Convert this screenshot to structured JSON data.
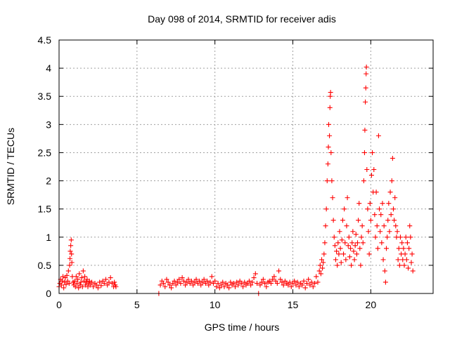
{
  "chart_data": {
    "type": "scatter",
    "title": "Day 098 of 2014, SRMTID for receiver adis",
    "xlabel": "GPS time / hours",
    "ylabel": "SRMTID / TECUs",
    "xlim": [
      0,
      24
    ],
    "ylim": [
      0,
      4.5
    ],
    "xticks": [
      "0",
      "5",
      "10",
      "15",
      "20"
    ],
    "yticks": [
      "0",
      "0.5",
      "1",
      "1.5",
      "2",
      "2.5",
      "3",
      "3.5",
      "4",
      "4.5"
    ],
    "marker": "+",
    "color": "#ff0000",
    "grid": true,
    "series": [
      {
        "name": "SRMTID",
        "points": [
          [
            0.0,
            0.12
          ],
          [
            0.05,
            0.18
          ],
          [
            0.1,
            0.25
          ],
          [
            0.15,
            0.15
          ],
          [
            0.2,
            0.22
          ],
          [
            0.25,
            0.3
          ],
          [
            0.3,
            0.1
          ],
          [
            0.35,
            0.2
          ],
          [
            0.4,
            0.28
          ],
          [
            0.45,
            0.16
          ],
          [
            0.5,
            0.32
          ],
          [
            0.55,
            0.22
          ],
          [
            0.6,
            0.4
          ],
          [
            0.65,
            0.18
          ],
          [
            0.68,
            0.5
          ],
          [
            0.7,
            0.62
          ],
          [
            0.72,
            0.75
          ],
          [
            0.75,
            0.85
          ],
          [
            0.78,
            0.95
          ],
          [
            0.8,
            0.7
          ],
          [
            0.82,
            0.55
          ],
          [
            0.85,
            0.3
          ],
          [
            0.9,
            0.2
          ],
          [
            0.95,
            0.15
          ],
          [
            1.0,
            0.22
          ],
          [
            1.05,
            0.12
          ],
          [
            1.1,
            0.3
          ],
          [
            1.15,
            0.18
          ],
          [
            1.2,
            0.25
          ],
          [
            1.25,
            0.1
          ],
          [
            1.3,
            0.35
          ],
          [
            1.35,
            0.15
          ],
          [
            1.4,
            0.2
          ],
          [
            1.45,
            0.28
          ],
          [
            1.5,
            0.12
          ],
          [
            1.55,
            0.4
          ],
          [
            1.6,
            0.22
          ],
          [
            1.65,
            0.3
          ],
          [
            1.7,
            0.15
          ],
          [
            1.75,
            0.2
          ],
          [
            1.8,
            0.25
          ],
          [
            1.85,
            0.12
          ],
          [
            1.9,
            0.18
          ],
          [
            1.95,
            0.22
          ],
          [
            2.0,
            0.15
          ],
          [
            2.1,
            0.2
          ],
          [
            2.2,
            0.12
          ],
          [
            2.3,
            0.18
          ],
          [
            2.4,
            0.15
          ],
          [
            2.5,
            0.1
          ],
          [
            2.6,
            0.2
          ],
          [
            2.7,
            0.14
          ],
          [
            2.8,
            0.22
          ],
          [
            2.9,
            0.18
          ],
          [
            3.0,
            0.25
          ],
          [
            3.1,
            0.15
          ],
          [
            3.2,
            0.2
          ],
          [
            3.3,
            0.28
          ],
          [
            3.4,
            0.18
          ],
          [
            3.5,
            0.12
          ],
          [
            3.55,
            0.2
          ],
          [
            3.6,
            0.15
          ],
          [
            3.65,
            0.12
          ],
          [
            6.4,
            0.0
          ],
          [
            6.5,
            0.15
          ],
          [
            6.6,
            0.22
          ],
          [
            6.7,
            0.18
          ],
          [
            6.8,
            0.12
          ],
          [
            6.9,
            0.25
          ],
          [
            7.0,
            0.2
          ],
          [
            7.1,
            0.15
          ],
          [
            7.2,
            0.1
          ],
          [
            7.3,
            0.18
          ],
          [
            7.4,
            0.22
          ],
          [
            7.5,
            0.15
          ],
          [
            7.6,
            0.2
          ],
          [
            7.7,
            0.25
          ],
          [
            7.8,
            0.18
          ],
          [
            7.9,
            0.28
          ],
          [
            8.0,
            0.22
          ],
          [
            8.1,
            0.15
          ],
          [
            8.2,
            0.2
          ],
          [
            8.3,
            0.25
          ],
          [
            8.4,
            0.18
          ],
          [
            8.5,
            0.22
          ],
          [
            8.6,
            0.15
          ],
          [
            8.7,
            0.2
          ],
          [
            8.8,
            0.25
          ],
          [
            8.9,
            0.18
          ],
          [
            9.0,
            0.22
          ],
          [
            9.1,
            0.15
          ],
          [
            9.2,
            0.2
          ],
          [
            9.3,
            0.25
          ],
          [
            9.4,
            0.18
          ],
          [
            9.5,
            0.22
          ],
          [
            9.6,
            0.15
          ],
          [
            9.7,
            0.2
          ],
          [
            9.8,
            0.3
          ],
          [
            9.9,
            0.18
          ],
          [
            10.0,
            0.22
          ],
          [
            10.1,
            0.12
          ],
          [
            10.2,
            0.18
          ],
          [
            10.3,
            0.1
          ],
          [
            10.4,
            0.15
          ],
          [
            10.5,
            0.2
          ],
          [
            10.6,
            0.12
          ],
          [
            10.7,
            0.18
          ],
          [
            10.8,
            0.15
          ],
          [
            10.9,
            0.1
          ],
          [
            11.0,
            0.2
          ],
          [
            11.1,
            0.15
          ],
          [
            11.2,
            0.18
          ],
          [
            11.3,
            0.12
          ],
          [
            11.4,
            0.2
          ],
          [
            11.5,
            0.15
          ],
          [
            11.6,
            0.22
          ],
          [
            11.7,
            0.18
          ],
          [
            11.8,
            0.12
          ],
          [
            11.9,
            0.2
          ],
          [
            12.0,
            0.15
          ],
          [
            12.1,
            0.18
          ],
          [
            12.2,
            0.22
          ],
          [
            12.3,
            0.15
          ],
          [
            12.4,
            0.2
          ],
          [
            12.5,
            0.28
          ],
          [
            12.6,
            0.35
          ],
          [
            12.7,
            0.18
          ],
          [
            12.8,
            0.0
          ],
          [
            12.9,
            0.15
          ],
          [
            13.0,
            0.2
          ],
          [
            13.1,
            0.25
          ],
          [
            13.2,
            0.18
          ],
          [
            13.3,
            0.12
          ],
          [
            13.4,
            0.2
          ],
          [
            13.5,
            0.22
          ],
          [
            13.6,
            0.18
          ],
          [
            13.7,
            0.25
          ],
          [
            13.8,
            0.3
          ],
          [
            13.9,
            0.22
          ],
          [
            14.0,
            0.18
          ],
          [
            14.1,
            0.4
          ],
          [
            14.2,
            0.25
          ],
          [
            14.3,
            0.2
          ],
          [
            14.4,
            0.15
          ],
          [
            14.5,
            0.22
          ],
          [
            14.6,
            0.18
          ],
          [
            14.7,
            0.15
          ],
          [
            14.8,
            0.2
          ],
          [
            14.9,
            0.12
          ],
          [
            15.0,
            0.18
          ],
          [
            15.1,
            0.22
          ],
          [
            15.2,
            0.15
          ],
          [
            15.3,
            0.2
          ],
          [
            15.4,
            0.12
          ],
          [
            15.5,
            0.18
          ],
          [
            15.6,
            0.15
          ],
          [
            15.7,
            0.22
          ],
          [
            15.8,
            0.1
          ],
          [
            15.9,
            0.18
          ],
          [
            16.0,
            0.25
          ],
          [
            16.1,
            0.15
          ],
          [
            16.2,
            0.2
          ],
          [
            16.3,
            0.12
          ],
          [
            16.4,
            0.18
          ],
          [
            16.5,
            0.3
          ],
          [
            16.6,
            0.2
          ],
          [
            16.7,
            0.4
          ],
          [
            16.75,
            0.5
          ],
          [
            16.8,
            0.35
          ],
          [
            16.85,
            0.6
          ],
          [
            16.9,
            0.45
          ],
          [
            16.95,
            0.55
          ],
          [
            17.0,
            0.7
          ],
          [
            17.05,
            0.9
          ],
          [
            17.1,
            1.2
          ],
          [
            17.15,
            1.5
          ],
          [
            17.2,
            2.0
          ],
          [
            17.25,
            2.3
          ],
          [
            17.28,
            2.6
          ],
          [
            17.3,
            3.0
          ],
          [
            17.35,
            2.8
          ],
          [
            17.38,
            3.3
          ],
          [
            17.4,
            3.5
          ],
          [
            17.42,
            3.57
          ],
          [
            17.45,
            2.5
          ],
          [
            17.5,
            2.0
          ],
          [
            17.55,
            1.7
          ],
          [
            17.6,
            1.3
          ],
          [
            17.65,
            1.0
          ],
          [
            17.7,
            0.85
          ],
          [
            17.75,
            0.6
          ],
          [
            17.8,
            0.75
          ],
          [
            17.85,
            0.5
          ],
          [
            17.9,
            0.9
          ],
          [
            17.95,
            0.7
          ],
          [
            18.0,
            1.1
          ],
          [
            18.05,
            0.8
          ],
          [
            18.1,
            0.55
          ],
          [
            18.15,
            0.95
          ],
          [
            18.2,
            1.3
          ],
          [
            18.25,
            0.7
          ],
          [
            18.3,
            1.5
          ],
          [
            18.35,
            0.9
          ],
          [
            18.4,
            0.6
          ],
          [
            18.45,
            1.2
          ],
          [
            18.5,
            1.7
          ],
          [
            18.55,
            0.85
          ],
          [
            18.6,
            1.0
          ],
          [
            18.65,
            0.65
          ],
          [
            18.7,
            0.8
          ],
          [
            18.75,
            0.5
          ],
          [
            18.8,
            0.9
          ],
          [
            18.85,
            1.1
          ],
          [
            18.9,
            0.75
          ],
          [
            18.95,
            0.6
          ],
          [
            19.0,
            0.85
          ],
          [
            19.05,
            1.05
          ],
          [
            19.1,
            0.7
          ],
          [
            19.15,
            0.9
          ],
          [
            19.2,
            1.3
          ],
          [
            19.25,
            1.6
          ],
          [
            19.3,
            0.8
          ],
          [
            19.35,
            0.5
          ],
          [
            19.4,
            1.0
          ],
          [
            19.45,
            1.2
          ],
          [
            19.5,
            0.9
          ],
          [
            19.55,
            2.0
          ],
          [
            19.6,
            2.5
          ],
          [
            19.62,
            2.9
          ],
          [
            19.65,
            3.4
          ],
          [
            19.68,
            3.65
          ],
          [
            19.7,
            3.9
          ],
          [
            19.72,
            4.02
          ],
          [
            19.75,
            2.2
          ],
          [
            19.8,
            1.5
          ],
          [
            19.85,
            1.1
          ],
          [
            19.9,
            0.7
          ],
          [
            19.95,
            1.6
          ],
          [
            20.0,
            1.3
          ],
          [
            20.05,
            2.1
          ],
          [
            20.1,
            2.5
          ],
          [
            20.15,
            1.8
          ],
          [
            20.2,
            2.2
          ],
          [
            20.25,
            1.4
          ],
          [
            20.3,
            1.0
          ],
          [
            20.35,
            1.8
          ],
          [
            20.4,
            1.2
          ],
          [
            20.45,
            0.8
          ],
          [
            20.5,
            2.8
          ],
          [
            20.55,
            1.5
          ],
          [
            20.6,
            1.1
          ],
          [
            20.65,
            1.4
          ],
          [
            20.7,
            0.9
          ],
          [
            20.75,
            1.6
          ],
          [
            20.8,
            0.6
          ],
          [
            20.85,
            1.2
          ],
          [
            20.9,
            0.4
          ],
          [
            20.95,
            0.2
          ],
          [
            21.0,
            0.8
          ],
          [
            21.05,
            1.0
          ],
          [
            21.1,
            1.3
          ],
          [
            21.15,
            1.6
          ],
          [
            21.2,
            1.1
          ],
          [
            21.25,
            1.8
          ],
          [
            21.3,
            1.4
          ],
          [
            21.35,
            2.0
          ],
          [
            21.4,
            2.4
          ],
          [
            21.45,
            1.5
          ],
          [
            21.5,
            1.3
          ],
          [
            21.55,
            1.7
          ],
          [
            21.6,
            1.2
          ],
          [
            21.65,
            1.0
          ],
          [
            21.7,
            1.1
          ],
          [
            21.75,
            0.6
          ],
          [
            21.8,
            0.8
          ],
          [
            21.85,
            0.5
          ],
          [
            21.9,
            1.0
          ],
          [
            21.95,
            0.7
          ],
          [
            22.0,
            0.9
          ],
          [
            22.05,
            0.6
          ],
          [
            22.1,
            0.8
          ],
          [
            22.15,
            0.5
          ],
          [
            22.2,
            0.7
          ],
          [
            22.25,
            1.0
          ],
          [
            22.3,
            0.6
          ],
          [
            22.35,
            0.9
          ],
          [
            22.4,
            0.45
          ],
          [
            22.45,
            0.8
          ],
          [
            22.5,
            1.2
          ],
          [
            22.55,
            1.0
          ],
          [
            22.6,
            0.55
          ],
          [
            22.65,
            0.7
          ],
          [
            22.7,
            0.4
          ]
        ]
      }
    ]
  }
}
